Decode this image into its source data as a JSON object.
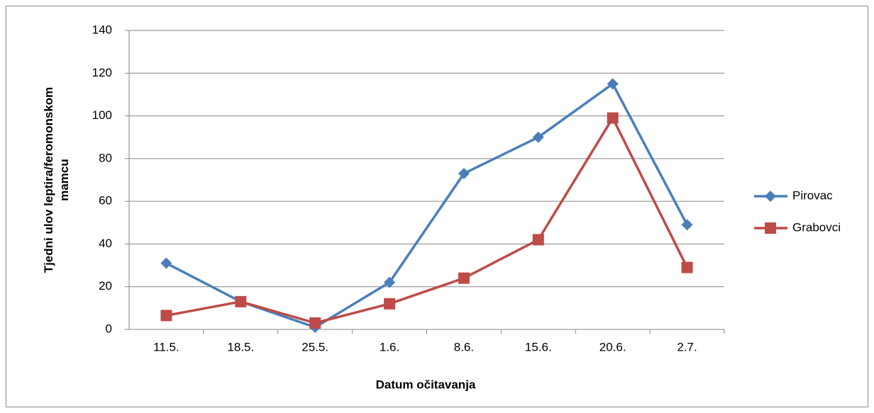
{
  "chart_data": {
    "type": "line",
    "xlabel": "Datum očitavanja",
    "ylabel": "Tjedni ulov leptira/feromonskom mamcu",
    "categories": [
      "11.5.",
      "18.5.",
      "25.5.",
      "1.6.",
      "8.6.",
      "15.6.",
      "20.6.",
      "2.7."
    ],
    "series": [
      {
        "name": "Pirovac",
        "color": "#4a7ebb",
        "marker": "diamond",
        "values": [
          31,
          13,
          1,
          22,
          73,
          90,
          115,
          49
        ]
      },
      {
        "name": "Grabovci",
        "color": "#be4b48",
        "marker": "square",
        "values": [
          6.5,
          13,
          3,
          12,
          24,
          42,
          99,
          29
        ]
      }
    ],
    "ylim": [
      0,
      140
    ],
    "yticks": [
      0,
      20,
      40,
      60,
      80,
      100,
      120,
      140
    ],
    "grid": true,
    "legend": "right"
  }
}
